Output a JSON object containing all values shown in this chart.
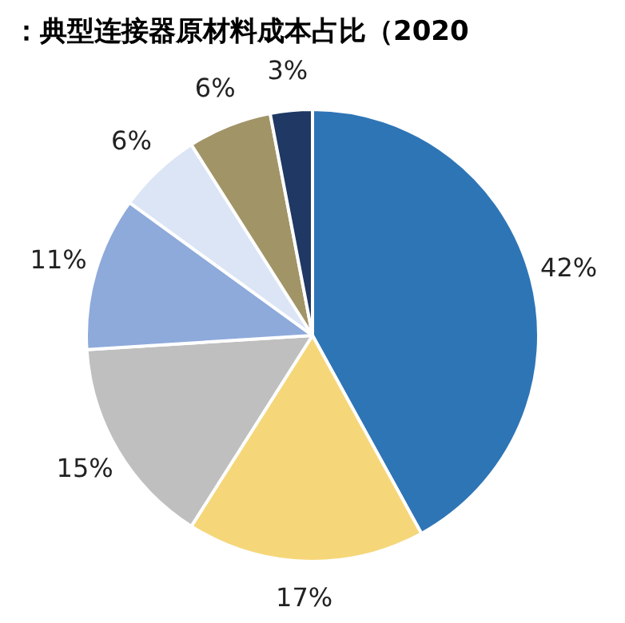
{
  "chart_data": {
    "type": "pie",
    "title": "：典型连接器原材料成本占比（2020",
    "categories": [
      null,
      null,
      null,
      null,
      null,
      null,
      null
    ],
    "values": [
      42,
      17,
      15,
      11,
      6,
      6,
      3
    ],
    "colors": [
      "#2e75b6",
      "#f5d77a",
      "#bfbfbf",
      "#8eaadb",
      "#dbe5f5",
      "#a19467",
      "#1f3864"
    ],
    "value_labels": [
      "42%",
      "17%",
      "15%",
      "11%",
      "6%",
      "6%",
      "3%"
    ],
    "legend": false
  }
}
